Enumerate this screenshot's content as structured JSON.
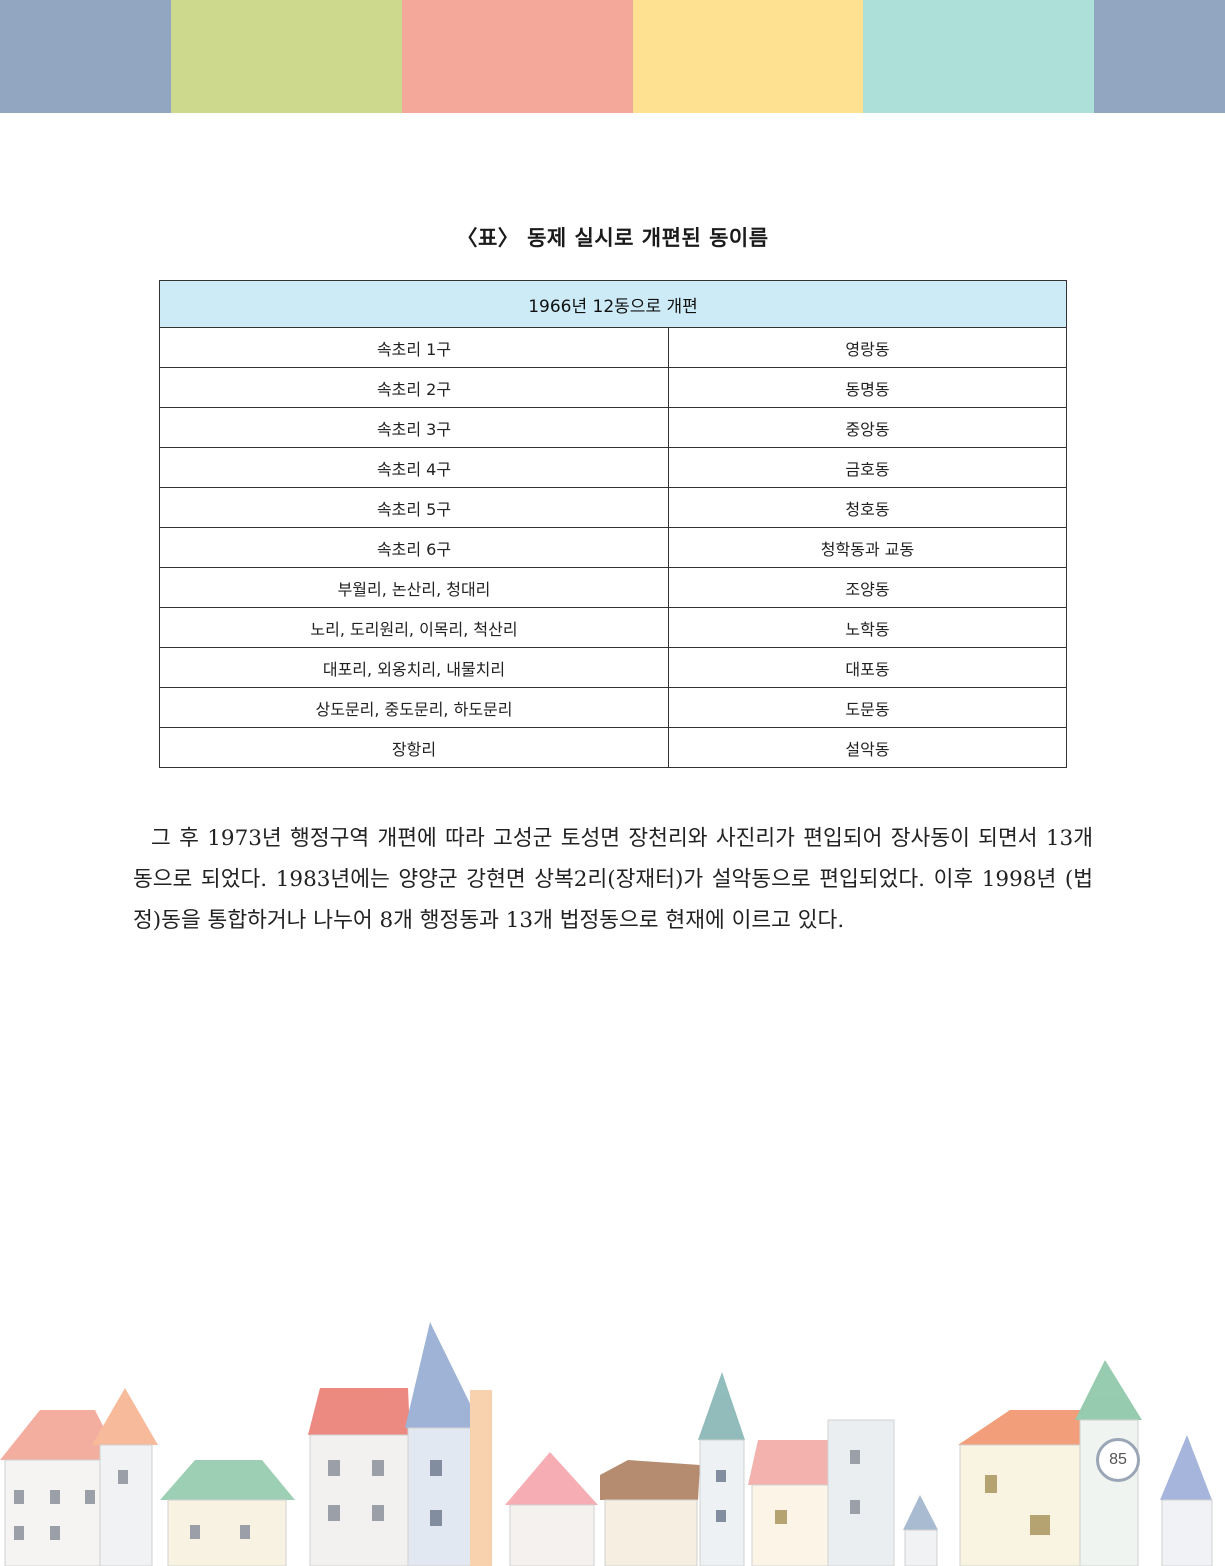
{
  "header_band": {
    "colors": [
      "#92a6c2",
      "#cdd98c",
      "#f4a899",
      "#fee191",
      "#aee0da",
      "#92a6c2"
    ]
  },
  "table": {
    "title": "〈표〉 동제 실시로 개편된 동이름",
    "header": "1966년 12동으로 개편",
    "rows": [
      {
        "old": "속초리 1구",
        "new": "영랑동"
      },
      {
        "old": "속초리 2구",
        "new": "동명동"
      },
      {
        "old": "속초리 3구",
        "new": "중앙동"
      },
      {
        "old": "속초리 4구",
        "new": "금호동"
      },
      {
        "old": "속초리 5구",
        "new": "청호동"
      },
      {
        "old": "속초리 6구",
        "new": "청학동과 교동"
      },
      {
        "old": "부월리, 논산리, 청대리",
        "new": "조양동"
      },
      {
        "old": "노리, 도리원리, 이목리, 척산리",
        "new": "노학동"
      },
      {
        "old": "대포리, 외옹치리, 내물치리",
        "new": "대포동"
      },
      {
        "old": "상도문리, 중도문리, 하도문리",
        "new": "도문동"
      },
      {
        "old": "장항리",
        "new": "설악동"
      }
    ]
  },
  "body_text": "그 후 1973년 행정구역 개편에 따라 고성군 토성면 장천리와 사진리가 편입되어 장사동이 되면서 13개 동으로 되었다. 1983년에는 양양군 강현면 상복2리(장재터)가 설악동으로 편입되었다. 이후 1998년 (법정)동을 통합하거나 나누어 8개 행정동과 13개 법정동으로 현재에 이르고 있다.",
  "page_number": "85"
}
